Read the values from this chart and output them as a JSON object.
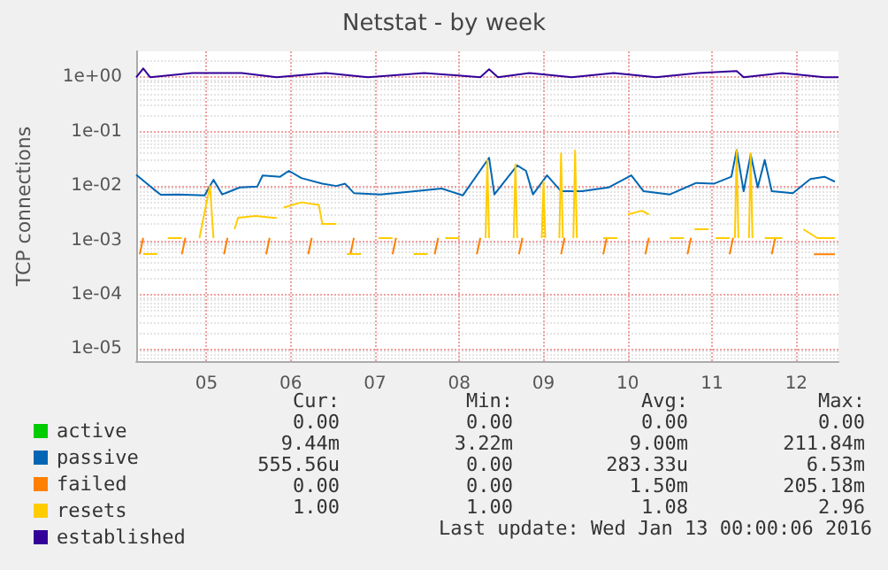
{
  "chart_data": {
    "type": "line",
    "title": "Netstat - by week",
    "ylabel": "TCP connections",
    "log": "y",
    "grid": true,
    "legend": "bottom left",
    "marker": "none",
    "line_style": "solid",
    "xlim": [
      "2016-01-04T04:00",
      "2016-01-12T12:00"
    ],
    "xticks": [
      {
        "value": "2016-01-05",
        "label": "05"
      },
      {
        "value": "2016-01-06",
        "label": "06"
      },
      {
        "value": "2016-01-07",
        "label": "07"
      },
      {
        "value": "2016-01-08",
        "label": "08"
      },
      {
        "value": "2016-01-09",
        "label": "09"
      },
      {
        "value": "2016-01-10",
        "label": "10"
      },
      {
        "value": "2016-01-11",
        "label": "11"
      },
      {
        "value": "2016-01-12",
        "label": "12"
      }
    ],
    "ylim": [
      6e-06,
      3
    ],
    "yticks": [
      {
        "value": 1e-05,
        "label": "1e-05"
      },
      {
        "value": 0.0001,
        "label": "1e-04"
      },
      {
        "value": 0.001,
        "label": "1e-03"
      },
      {
        "value": 0.01,
        "label": "1e-02"
      },
      {
        "value": 0.1,
        "label": "1e-01"
      },
      {
        "value": 1,
        "label": "1e+00"
      }
    ],
    "series": [
      {
        "name": "active",
        "color": "#00cc00"
      },
      {
        "name": "passive",
        "color": "#0066b3",
        "x": [
          "2016-01-04T04:00",
          "2016-01-04T09:00",
          "2016-01-04T11:00",
          "2016-01-04T16:00",
          "2016-01-04T23:30",
          "2016-01-05T02:00",
          "2016-01-05T04:30",
          "2016-01-05T09:30",
          "2016-01-05T14:30",
          "2016-01-05T16:00",
          "2016-01-05T21:00",
          "2016-01-05T23:30",
          "2016-01-06T03:00",
          "2016-01-06T09:00",
          "2016-01-06T13:00",
          "2016-01-06T15:30",
          "2016-01-06T18:00",
          "2016-01-07T01:30",
          "2016-01-07T11:30",
          "2016-01-07T19:00",
          "2016-01-08T01:00",
          "2016-01-08T08:30",
          "2016-01-08T10:00",
          "2016-01-08T16:30",
          "2016-01-08T19:00",
          "2016-01-08T21:00",
          "2016-01-09T01:00",
          "2016-01-09T05:00",
          "2016-01-09T11:00",
          "2016-01-09T18:30",
          "2016-01-10T01:00",
          "2016-01-10T04:30",
          "2016-01-10T12:00",
          "2016-01-10T19:30",
          "2016-01-11T00:30",
          "2016-01-11T05:30",
          "2016-01-11T07:00",
          "2016-01-11T09:00",
          "2016-01-11T11:00",
          "2016-01-11T13:00",
          "2016-01-11T15:00",
          "2016-01-11T17:00",
          "2016-01-11T23:00",
          "2016-01-12T04:00",
          "2016-01-12T08:00",
          "2016-01-12T11:00"
        ],
        "values": [
          0.016,
          0.0087,
          0.0069,
          0.007,
          0.0067,
          0.013,
          0.007,
          0.0094,
          0.0098,
          0.0156,
          0.0148,
          0.019,
          0.014,
          0.011,
          0.01,
          0.011,
          0.0074,
          0.007,
          0.008,
          0.009,
          0.0067,
          0.033,
          0.007,
          0.024,
          0.019,
          0.007,
          0.0157,
          0.008,
          0.008,
          0.0094,
          0.0157,
          0.008,
          0.007,
          0.0114,
          0.011,
          0.0148,
          0.046,
          0.008,
          0.038,
          0.0094,
          0.03,
          0.008,
          0.0074,
          0.0134,
          0.0148,
          0.012
        ]
      },
      {
        "name": "failed",
        "color": "#ff8000",
        "x": [
          "2016-01-04T05:00",
          "2016-01-04T06:00",
          "2016-01-04T07:00",
          "2016-01-04T17:00",
          "2016-01-04T18:00",
          "2016-01-04T19:00",
          "2016-01-05T05:00",
          "2016-01-05T06:00",
          "2016-01-05T07:00",
          "2016-01-05T17:00",
          "2016-01-05T18:00",
          "2016-01-05T19:00",
          "2016-01-06T05:00",
          "2016-01-06T06:00",
          "2016-01-06T07:00",
          "2016-01-06T17:00",
          "2016-01-06T18:00",
          "2016-01-06T19:00",
          "2016-01-07T05:00",
          "2016-01-07T06:00",
          "2016-01-07T07:00",
          "2016-01-07T17:00",
          "2016-01-07T18:00",
          "2016-01-07T19:00",
          "2016-01-08T05:00",
          "2016-01-08T06:00",
          "2016-01-08T07:00",
          "2016-01-08T17:00",
          "2016-01-08T18:00",
          "2016-01-08T19:00",
          "2016-01-09T05:00",
          "2016-01-09T06:00",
          "2016-01-09T07:00",
          "2016-01-09T17:00",
          "2016-01-09T18:00",
          "2016-01-09T19:00",
          "2016-01-10T05:00",
          "2016-01-10T06:00",
          "2016-01-10T07:00",
          "2016-01-10T17:00",
          "2016-01-10T18:00",
          "2016-01-10T19:00",
          "2016-01-11T05:00",
          "2016-01-11T06:00",
          "2016-01-11T07:00",
          "2016-01-11T17:00",
          "2016-01-11T18:00",
          "2016-01-11T19:00",
          "2016-01-12T05:00",
          "2016-01-12T11:00"
        ],
        "values": [
          0.000556,
          0.00111,
          null,
          0.000556,
          0.00111,
          null,
          0.000556,
          0.00111,
          null,
          0.000556,
          0.00111,
          null,
          0.000556,
          0.00111,
          null,
          0.000556,
          0.00111,
          null,
          0.000556,
          0.00111,
          null,
          0.000556,
          0.00111,
          null,
          0.000556,
          0.00111,
          null,
          0.000556,
          0.00111,
          null,
          0.000556,
          0.00111,
          null,
          0.000556,
          0.00111,
          null,
          0.000556,
          0.00111,
          null,
          0.000556,
          0.00111,
          null,
          0.000556,
          0.00111,
          null,
          0.000556,
          0.00111,
          null,
          0.000556,
          0.000556
        ]
      },
      {
        "name": "resets",
        "color": "#ffcc00",
        "x": [
          "2016-01-04T06:00",
          "2016-01-04T10:00",
          "2016-01-04T11:00",
          "2016-01-04T13:00",
          "2016-01-04T17:00",
          "2016-01-04T18:00",
          "2016-01-04T22:00",
          "2016-01-05T01:00",
          "2016-01-05T02:00",
          "2016-01-05T03:00",
          "2016-01-05T08:00",
          "2016-01-05T09:00",
          "2016-01-05T14:00",
          "2016-01-05T19:00",
          "2016-01-05T20:00",
          "2016-01-05T21:00",
          "2016-01-05T22:00",
          "2016-01-06T03:00",
          "2016-01-06T08:00",
          "2016-01-06T09:00",
          "2016-01-06T13:00",
          "2016-01-06T14:00",
          "2016-01-06T16:00",
          "2016-01-06T20:00",
          "2016-01-06T21:00",
          "2016-01-07T01:00",
          "2016-01-07T05:00",
          "2016-01-07T06:00",
          "2016-01-07T11:00",
          "2016-01-07T15:00",
          "2016-01-07T16:00",
          "2016-01-07T20:00",
          "2016-01-08T00:00",
          "2016-01-08T01:00",
          "2016-01-08T07:30",
          "2016-01-08T08:00",
          "2016-01-08T08:30",
          "2016-01-08T09:00",
          "2016-01-08T15:30",
          "2016-01-08T16:00",
          "2016-01-08T16:30",
          "2016-01-08T17:00",
          "2016-01-08T23:30",
          "2016-01-09T00:00",
          "2016-01-09T00:30",
          "2016-01-09T01:00",
          "2016-01-09T04:30",
          "2016-01-09T05:00",
          "2016-01-09T05:30",
          "2016-01-09T06:00",
          "2016-01-09T08:30",
          "2016-01-09T09:00",
          "2016-01-09T09:30",
          "2016-01-09T10:00",
          "2016-01-09T17:00",
          "2016-01-09T21:00",
          "2016-01-09T22:00",
          "2016-01-10T00:00",
          "2016-01-10T04:00",
          "2016-01-10T06:00",
          "2016-01-10T07:00",
          "2016-01-10T12:00",
          "2016-01-10T16:00",
          "2016-01-10T17:00",
          "2016-01-10T19:00",
          "2016-01-10T23:00",
          "2016-01-11T00:00",
          "2016-01-11T01:00",
          "2016-01-11T05:00",
          "2016-01-11T06:00",
          "2016-01-11T06:30",
          "2016-01-11T07:00",
          "2016-01-11T07:30",
          "2016-01-11T08:00",
          "2016-01-11T10:30",
          "2016-01-11T11:00",
          "2016-01-11T11:30",
          "2016-01-11T12:00",
          "2016-01-11T15:00",
          "2016-01-11T20:00",
          "2016-01-11T21:00",
          "2016-01-12T02:00",
          "2016-01-12T06:00",
          "2016-01-12T11:00"
        ],
        "values": [
          0.00056,
          0.00056,
          null,
          0.0011,
          0.0011,
          null,
          0.0011,
          0.01,
          0.0011,
          null,
          0.0016,
          0.0026,
          0.0028,
          0.0026,
          0.0026,
          null,
          0.004,
          0.005,
          0.0045,
          0.002,
          0.002,
          null,
          0.00056,
          0.00056,
          null,
          0.0011,
          0.0011,
          null,
          0.00056,
          0.00056,
          null,
          0.0011,
          0.0011,
          null,
          0.0011,
          0.03,
          0.0011,
          null,
          0.0011,
          0.025,
          0.0011,
          null,
          0.0011,
          0.012,
          0.0011,
          null,
          0.0011,
          0.04,
          0.0011,
          null,
          0.0011,
          0.045,
          0.0011,
          null,
          0.0011,
          0.0011,
          null,
          0.003,
          0.0035,
          0.003,
          null,
          0.0011,
          0.0011,
          null,
          0.0016,
          0.0016,
          null,
          0.0011,
          0.0011,
          null,
          0.0011,
          0.045,
          0.0011,
          null,
          0.0011,
          0.04,
          0.0011,
          null,
          0.0011,
          0.0011,
          null,
          0.0016,
          0.0011,
          0.0011
        ]
      },
      {
        "name": "established",
        "color": "#330099",
        "x": [
          "2016-01-04T04:00",
          "2016-01-04T06:00",
          "2016-01-04T08:00",
          "2016-01-04T20:00",
          "2016-01-05T10:00",
          "2016-01-05T20:00",
          "2016-01-06T10:00",
          "2016-01-06T22:00",
          "2016-01-07T14:00",
          "2016-01-08T06:00",
          "2016-01-08T08:30",
          "2016-01-08T11:00",
          "2016-01-08T20:00",
          "2016-01-09T08:00",
          "2016-01-09T20:00",
          "2016-01-10T08:00",
          "2016-01-10T20:00",
          "2016-01-11T07:00",
          "2016-01-11T09:00",
          "2016-01-11T20:00",
          "2016-01-12T08:00",
          "2016-01-12T12:00"
        ],
        "values": [
          1,
          1.45,
          1,
          1.2,
          1.2,
          1,
          1.2,
          1,
          1.2,
          1,
          1.4,
          1,
          1.2,
          1,
          1.2,
          1,
          1.2,
          1.3,
          1,
          1.2,
          1,
          1
        ]
      }
    ],
    "annotations": [
      "Cur:",
      "Min:",
      "Avg:",
      "Max:",
      "0.00",
      "0.00",
      "0.00",
      "0.00",
      "9.44m",
      "3.22m",
      "9.00m",
      "211.84m",
      "555.56u",
      "0.00",
      "283.33u",
      "6.53m",
      "0.00",
      "0.00",
      "1.50m",
      "205.18m",
      "1.00",
      "1.00",
      "1.08",
      "2.96",
      "Last update: Wed Jan 13 00:00:06 2016"
    ]
  }
}
